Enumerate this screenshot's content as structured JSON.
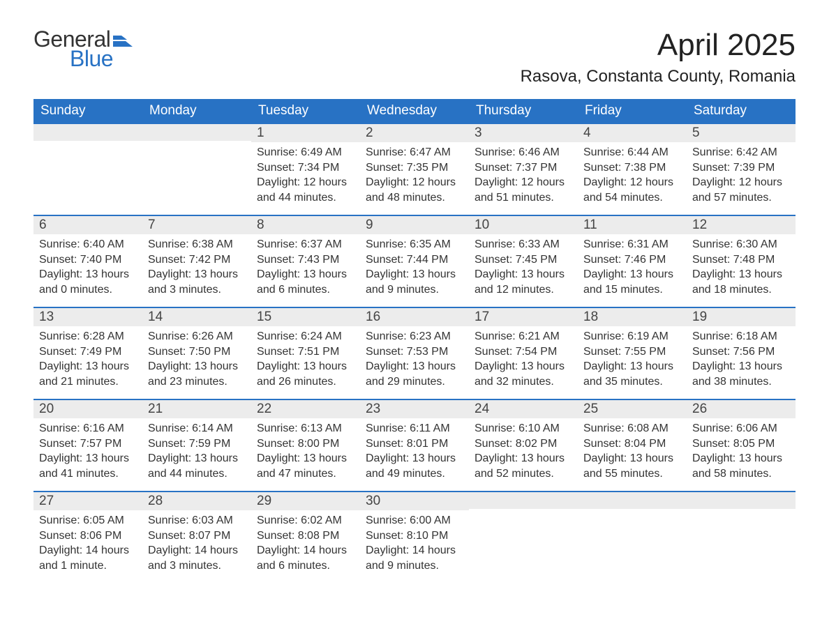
{
  "logo": {
    "general": "General",
    "blue": "Blue",
    "flag_color": "#2872c4"
  },
  "title": "April 2025",
  "location": "Rasova, Constanta County, Romania",
  "colors": {
    "header_bg": "#2872c4",
    "header_text": "#ffffff",
    "daynum_bg": "#ececec",
    "border_top": "#2872c4",
    "body_text": "#333333",
    "page_bg": "#ffffff"
  },
  "day_headers": [
    "Sunday",
    "Monday",
    "Tuesday",
    "Wednesday",
    "Thursday",
    "Friday",
    "Saturday"
  ],
  "weeks": [
    [
      {
        "num": "",
        "lines": []
      },
      {
        "num": "",
        "lines": []
      },
      {
        "num": "1",
        "lines": [
          "Sunrise: 6:49 AM",
          "Sunset: 7:34 PM",
          "Daylight: 12 hours and 44 minutes."
        ]
      },
      {
        "num": "2",
        "lines": [
          "Sunrise: 6:47 AM",
          "Sunset: 7:35 PM",
          "Daylight: 12 hours and 48 minutes."
        ]
      },
      {
        "num": "3",
        "lines": [
          "Sunrise: 6:46 AM",
          "Sunset: 7:37 PM",
          "Daylight: 12 hours and 51 minutes."
        ]
      },
      {
        "num": "4",
        "lines": [
          "Sunrise: 6:44 AM",
          "Sunset: 7:38 PM",
          "Daylight: 12 hours and 54 minutes."
        ]
      },
      {
        "num": "5",
        "lines": [
          "Sunrise: 6:42 AM",
          "Sunset: 7:39 PM",
          "Daylight: 12 hours and 57 minutes."
        ]
      }
    ],
    [
      {
        "num": "6",
        "lines": [
          "Sunrise: 6:40 AM",
          "Sunset: 7:40 PM",
          "Daylight: 13 hours and 0 minutes."
        ]
      },
      {
        "num": "7",
        "lines": [
          "Sunrise: 6:38 AM",
          "Sunset: 7:42 PM",
          "Daylight: 13 hours and 3 minutes."
        ]
      },
      {
        "num": "8",
        "lines": [
          "Sunrise: 6:37 AM",
          "Sunset: 7:43 PM",
          "Daylight: 13 hours and 6 minutes."
        ]
      },
      {
        "num": "9",
        "lines": [
          "Sunrise: 6:35 AM",
          "Sunset: 7:44 PM",
          "Daylight: 13 hours and 9 minutes."
        ]
      },
      {
        "num": "10",
        "lines": [
          "Sunrise: 6:33 AM",
          "Sunset: 7:45 PM",
          "Daylight: 13 hours and 12 minutes."
        ]
      },
      {
        "num": "11",
        "lines": [
          "Sunrise: 6:31 AM",
          "Sunset: 7:46 PM",
          "Daylight: 13 hours and 15 minutes."
        ]
      },
      {
        "num": "12",
        "lines": [
          "Sunrise: 6:30 AM",
          "Sunset: 7:48 PM",
          "Daylight: 13 hours and 18 minutes."
        ]
      }
    ],
    [
      {
        "num": "13",
        "lines": [
          "Sunrise: 6:28 AM",
          "Sunset: 7:49 PM",
          "Daylight: 13 hours and 21 minutes."
        ]
      },
      {
        "num": "14",
        "lines": [
          "Sunrise: 6:26 AM",
          "Sunset: 7:50 PM",
          "Daylight: 13 hours and 23 minutes."
        ]
      },
      {
        "num": "15",
        "lines": [
          "Sunrise: 6:24 AM",
          "Sunset: 7:51 PM",
          "Daylight: 13 hours and 26 minutes."
        ]
      },
      {
        "num": "16",
        "lines": [
          "Sunrise: 6:23 AM",
          "Sunset: 7:53 PM",
          "Daylight: 13 hours and 29 minutes."
        ]
      },
      {
        "num": "17",
        "lines": [
          "Sunrise: 6:21 AM",
          "Sunset: 7:54 PM",
          "Daylight: 13 hours and 32 minutes."
        ]
      },
      {
        "num": "18",
        "lines": [
          "Sunrise: 6:19 AM",
          "Sunset: 7:55 PM",
          "Daylight: 13 hours and 35 minutes."
        ]
      },
      {
        "num": "19",
        "lines": [
          "Sunrise: 6:18 AM",
          "Sunset: 7:56 PM",
          "Daylight: 13 hours and 38 minutes."
        ]
      }
    ],
    [
      {
        "num": "20",
        "lines": [
          "Sunrise: 6:16 AM",
          "Sunset: 7:57 PM",
          "Daylight: 13 hours and 41 minutes."
        ]
      },
      {
        "num": "21",
        "lines": [
          "Sunrise: 6:14 AM",
          "Sunset: 7:59 PM",
          "Daylight: 13 hours and 44 minutes."
        ]
      },
      {
        "num": "22",
        "lines": [
          "Sunrise: 6:13 AM",
          "Sunset: 8:00 PM",
          "Daylight: 13 hours and 47 minutes."
        ]
      },
      {
        "num": "23",
        "lines": [
          "Sunrise: 6:11 AM",
          "Sunset: 8:01 PM",
          "Daylight: 13 hours and 49 minutes."
        ]
      },
      {
        "num": "24",
        "lines": [
          "Sunrise: 6:10 AM",
          "Sunset: 8:02 PM",
          "Daylight: 13 hours and 52 minutes."
        ]
      },
      {
        "num": "25",
        "lines": [
          "Sunrise: 6:08 AM",
          "Sunset: 8:04 PM",
          "Daylight: 13 hours and 55 minutes."
        ]
      },
      {
        "num": "26",
        "lines": [
          "Sunrise: 6:06 AM",
          "Sunset: 8:05 PM",
          "Daylight: 13 hours and 58 minutes."
        ]
      }
    ],
    [
      {
        "num": "27",
        "lines": [
          "Sunrise: 6:05 AM",
          "Sunset: 8:06 PM",
          "Daylight: 14 hours and 1 minute."
        ]
      },
      {
        "num": "28",
        "lines": [
          "Sunrise: 6:03 AM",
          "Sunset: 8:07 PM",
          "Daylight: 14 hours and 3 minutes."
        ]
      },
      {
        "num": "29",
        "lines": [
          "Sunrise: 6:02 AM",
          "Sunset: 8:08 PM",
          "Daylight: 14 hours and 6 minutes."
        ]
      },
      {
        "num": "30",
        "lines": [
          "Sunrise: 6:00 AM",
          "Sunset: 8:10 PM",
          "Daylight: 14 hours and 9 minutes."
        ]
      },
      {
        "num": "",
        "lines": []
      },
      {
        "num": "",
        "lines": []
      },
      {
        "num": "",
        "lines": []
      }
    ]
  ]
}
